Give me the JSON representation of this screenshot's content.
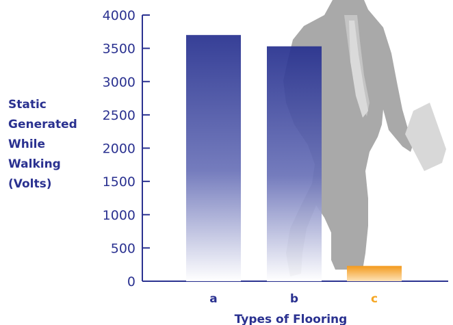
{
  "chart_data": {
    "type": "bar",
    "title": "",
    "xlabel": "Types of Flooring",
    "ylabel": [
      "Static",
      "Generated",
      "While",
      "Walking",
      "(Volts)"
    ],
    "categories": [
      "a",
      "b",
      "c"
    ],
    "values": [
      3700,
      3530,
      230
    ],
    "ylim": [
      0,
      4000
    ],
    "yticks": [
      0,
      500,
      1000,
      1500,
      2000,
      2500,
      3000,
      3500,
      4000
    ],
    "grid": false,
    "colors": {
      "axis": "#2a3190",
      "bar_top": "#27318f",
      "bar_bottom": "#ffffff",
      "highlight_bar": "#f5a623",
      "highlight_label": "#f5a623",
      "category_label": "#2a3190",
      "silhouette": "#a8a8a8"
    },
    "highlighted_category": "c",
    "background_graphic": "walking-businessman-silhouette"
  }
}
